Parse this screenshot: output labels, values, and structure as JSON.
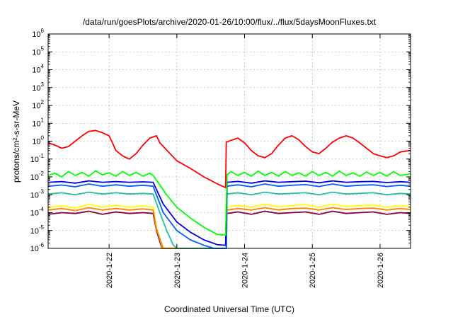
{
  "chart_data": {
    "type": "line",
    "title": "/data/run/goesPlots/archive/2020-01-26/10:00/flux/../flux/5daysMoonFluxes.txt",
    "xlabel": "Coordinated Universal Time (UTC)",
    "ylabel": "protons/cm²-s-sr-MeV",
    "yscale": "log",
    "ylim": [
      1e-06,
      1000000.0
    ],
    "xlim_days": [
      21.1,
      26.45
    ],
    "x_ticks": [
      {
        "value": 22,
        "label": "2020-1-22"
      },
      {
        "value": 23,
        "label": "2020-1-23"
      },
      {
        "value": 24,
        "label": "2020-1-24"
      },
      {
        "value": 25,
        "label": "2020-1-25"
      },
      {
        "value": 26,
        "label": "2020-1-26"
      }
    ],
    "y_ticks": [
      {
        "exp": -6
      },
      {
        "exp": -5
      },
      {
        "exp": -4
      },
      {
        "exp": -3
      },
      {
        "exp": -2
      },
      {
        "exp": -1
      },
      {
        "exp": 0
      },
      {
        "exp": 1
      },
      {
        "exp": 2
      },
      {
        "exp": 3
      },
      {
        "exp": 4
      },
      {
        "exp": 5
      },
      {
        "exp": 6
      }
    ],
    "grid": true,
    "series": [
      {
        "color": "#800040",
        "points": [
          [
            21.1,
            8e-05
          ],
          [
            21.3,
            0.0001
          ],
          [
            21.5,
            9e-05
          ],
          [
            21.7,
            0.00012
          ],
          [
            21.9,
            8e-05
          ],
          [
            22.1,
            0.00011
          ],
          [
            22.3,
            9e-05
          ],
          [
            22.5,
            0.0001
          ],
          [
            22.65,
            9e-05
          ],
          [
            22.7,
            1e-05
          ],
          [
            22.78,
            1e-06
          ],
          [
            23.73,
            1e-06
          ],
          [
            23.74,
            9e-05
          ],
          [
            23.9,
            0.00011
          ],
          [
            24.1,
            8e-05
          ],
          [
            24.3,
            0.00012
          ],
          [
            24.5,
            9e-05
          ],
          [
            24.7,
            0.0001
          ],
          [
            24.9,
            0.00011
          ],
          [
            25.1,
            8e-05
          ],
          [
            25.3,
            0.00012
          ],
          [
            25.5,
            9e-05
          ],
          [
            25.7,
            0.0001
          ],
          [
            25.9,
            0.00011
          ],
          [
            26.1,
            8e-05
          ],
          [
            26.3,
            0.0001
          ],
          [
            26.45,
            9e-05
          ]
        ]
      },
      {
        "color": "#ffff00",
        "points": [
          [
            21.1,
            0.0002
          ],
          [
            21.3,
            0.00025
          ],
          [
            21.5,
            0.00018
          ],
          [
            21.7,
            0.0003
          ],
          [
            21.9,
            0.0002
          ],
          [
            22.1,
            0.00026
          ],
          [
            22.3,
            0.0002
          ],
          [
            22.5,
            0.00024
          ],
          [
            22.65,
            0.00021
          ],
          [
            22.7,
            1.5e-05
          ],
          [
            22.79,
            1e-06
          ],
          [
            23.73,
            1e-06
          ],
          [
            23.74,
            0.0002
          ],
          [
            23.9,
            0.00026
          ],
          [
            24.1,
            0.0002
          ],
          [
            24.3,
            0.0003
          ],
          [
            24.5,
            0.00021
          ],
          [
            24.7,
            0.00025
          ],
          [
            24.9,
            0.00028
          ],
          [
            25.1,
            0.0002
          ],
          [
            25.3,
            0.0003
          ],
          [
            25.5,
            0.00022
          ],
          [
            25.7,
            0.00025
          ],
          [
            25.9,
            0.00027
          ],
          [
            26.1,
            0.0002
          ],
          [
            26.3,
            0.00025
          ],
          [
            26.45,
            0.00022
          ]
        ]
      },
      {
        "color": "#ff8000",
        "points": [
          [
            21.1,
            0.00014
          ],
          [
            21.3,
            0.00017
          ],
          [
            21.5,
            0.00013
          ],
          [
            21.7,
            0.00019
          ],
          [
            21.9,
            0.00014
          ],
          [
            22.1,
            0.00017
          ],
          [
            22.3,
            0.00014
          ],
          [
            22.5,
            0.00016
          ],
          [
            22.65,
            0.00014
          ],
          [
            22.7,
            1.2e-05
          ],
          [
            22.8,
            1e-06
          ],
          [
            23.73,
            1e-06
          ],
          [
            23.74,
            0.00014
          ],
          [
            23.9,
            0.00017
          ],
          [
            24.1,
            0.00014
          ],
          [
            24.3,
            0.00019
          ],
          [
            24.5,
            0.00014
          ],
          [
            24.7,
            0.00017
          ],
          [
            24.9,
            0.00018
          ],
          [
            25.1,
            0.00014
          ],
          [
            25.3,
            0.00019
          ],
          [
            25.5,
            0.00015
          ],
          [
            25.7,
            0.00017
          ],
          [
            25.9,
            0.00018
          ],
          [
            26.1,
            0.00014
          ],
          [
            26.3,
            0.00017
          ],
          [
            26.45,
            0.00015
          ]
        ]
      },
      {
        "color": "#20c0a0",
        "points": [
          [
            21.1,
            0.0011
          ],
          [
            21.3,
            0.0013
          ],
          [
            21.5,
            0.001
          ],
          [
            21.7,
            0.0014
          ],
          [
            21.9,
            0.0011
          ],
          [
            22.1,
            0.0013
          ],
          [
            22.3,
            0.0011
          ],
          [
            22.5,
            0.0012
          ],
          [
            22.65,
            0.0011
          ],
          [
            22.75,
            0.0001
          ],
          [
            22.85,
            1e-05
          ],
          [
            22.95,
            1.5e-06
          ],
          [
            23.0,
            1e-06
          ],
          [
            23.73,
            1e-06
          ],
          [
            23.74,
            0.0011
          ],
          [
            23.9,
            0.0013
          ],
          [
            24.1,
            0.001
          ],
          [
            24.3,
            0.0014
          ],
          [
            24.5,
            0.0011
          ],
          [
            24.7,
            0.0012
          ],
          [
            24.9,
            0.0013
          ],
          [
            25.1,
            0.001
          ],
          [
            25.3,
            0.0014
          ],
          [
            25.5,
            0.0011
          ],
          [
            25.7,
            0.0012
          ],
          [
            25.9,
            0.0013
          ],
          [
            26.1,
            0.001
          ],
          [
            26.3,
            0.0012
          ],
          [
            26.45,
            0.0011
          ]
        ]
      },
      {
        "color": "#0060ff",
        "points": [
          [
            21.1,
            0.003
          ],
          [
            21.3,
            0.0035
          ],
          [
            21.5,
            0.0028
          ],
          [
            21.7,
            0.004
          ],
          [
            21.9,
            0.003
          ],
          [
            22.1,
            0.0036
          ],
          [
            22.3,
            0.003
          ],
          [
            22.5,
            0.0034
          ],
          [
            22.65,
            0.003
          ],
          [
            22.8,
            0.0001
          ],
          [
            23.0,
            1e-05
          ],
          [
            23.2,
            3e-06
          ],
          [
            23.4,
            1.5e-06
          ],
          [
            23.55,
            1e-06
          ],
          [
            23.73,
            1e-06
          ],
          [
            23.74,
            0.003
          ],
          [
            23.9,
            0.0036
          ],
          [
            24.1,
            0.0028
          ],
          [
            24.3,
            0.004
          ],
          [
            24.5,
            0.003
          ],
          [
            24.7,
            0.0034
          ],
          [
            24.9,
            0.0037
          ],
          [
            25.1,
            0.0029
          ],
          [
            25.3,
            0.004
          ],
          [
            25.5,
            0.003
          ],
          [
            25.7,
            0.0034
          ],
          [
            25.9,
            0.0036
          ],
          [
            26.1,
            0.0029
          ],
          [
            26.3,
            0.0034
          ],
          [
            26.45,
            0.003
          ]
        ]
      },
      {
        "color": "#0000e0",
        "points": [
          [
            21.1,
            0.005
          ],
          [
            21.3,
            0.0055
          ],
          [
            21.5,
            0.0045
          ],
          [
            21.7,
            0.006
          ],
          [
            21.9,
            0.005
          ],
          [
            22.1,
            0.0055
          ],
          [
            22.3,
            0.005
          ],
          [
            22.5,
            0.0053
          ],
          [
            22.65,
            0.005
          ],
          [
            22.8,
            0.0003
          ],
          [
            23.0,
            3e-05
          ],
          [
            23.2,
            8e-06
          ],
          [
            23.4,
            3e-06
          ],
          [
            23.6,
            1.6e-06
          ],
          [
            23.72,
            1.5e-06
          ],
          [
            23.74,
            0.005
          ],
          [
            23.9,
            0.0056
          ],
          [
            24.1,
            0.0045
          ],
          [
            24.3,
            0.006
          ],
          [
            24.5,
            0.005
          ],
          [
            24.7,
            0.0054
          ],
          [
            24.9,
            0.0058
          ],
          [
            25.1,
            0.0047
          ],
          [
            25.3,
            0.006
          ],
          [
            25.5,
            0.005
          ],
          [
            25.7,
            0.0054
          ],
          [
            25.9,
            0.0056
          ],
          [
            26.1,
            0.0048
          ],
          [
            26.3,
            0.0054
          ],
          [
            26.45,
            0.005
          ]
        ]
      },
      {
        "color": "#00ff00",
        "points": [
          [
            21.1,
            0.012
          ],
          [
            21.2,
            0.016
          ],
          [
            21.3,
            0.01
          ],
          [
            21.4,
            0.02
          ],
          [
            21.5,
            0.012
          ],
          [
            21.6,
            0.018
          ],
          [
            21.7,
            0.011
          ],
          [
            21.8,
            0.022
          ],
          [
            21.9,
            0.013
          ],
          [
            22.0,
            0.017
          ],
          [
            22.1,
            0.011
          ],
          [
            22.2,
            0.02
          ],
          [
            22.3,
            0.012
          ],
          [
            22.4,
            0.018
          ],
          [
            22.5,
            0.011
          ],
          [
            22.6,
            0.016
          ],
          [
            22.65,
            0.012
          ],
          [
            22.85,
            0.001
          ],
          [
            23.0,
            0.0002
          ],
          [
            23.2,
            5e-05
          ],
          [
            23.4,
            1.5e-05
          ],
          [
            23.6,
            6e-06
          ],
          [
            23.72,
            5.5e-06
          ],
          [
            23.74,
            0.013
          ],
          [
            23.8,
            0.02
          ],
          [
            23.9,
            0.012
          ],
          [
            24.0,
            0.018
          ],
          [
            24.1,
            0.011
          ],
          [
            24.2,
            0.021
          ],
          [
            24.3,
            0.012
          ],
          [
            24.4,
            0.018
          ],
          [
            24.5,
            0.011
          ],
          [
            24.6,
            0.02
          ],
          [
            24.7,
            0.012
          ],
          [
            24.8,
            0.017
          ],
          [
            24.9,
            0.011
          ],
          [
            25.0,
            0.02
          ],
          [
            25.1,
            0.012
          ],
          [
            25.2,
            0.018
          ],
          [
            25.3,
            0.011
          ],
          [
            25.4,
            0.021
          ],
          [
            25.5,
            0.012
          ],
          [
            25.6,
            0.017
          ],
          [
            25.7,
            0.011
          ],
          [
            25.8,
            0.019
          ],
          [
            25.9,
            0.012
          ],
          [
            26.0,
            0.018
          ],
          [
            26.1,
            0.011
          ],
          [
            26.2,
            0.02
          ],
          [
            26.3,
            0.012
          ],
          [
            26.45,
            0.015
          ]
        ]
      },
      {
        "color": "#ff0000",
        "points": [
          [
            21.1,
            0.8
          ],
          [
            21.2,
            0.6
          ],
          [
            21.3,
            0.4
          ],
          [
            21.4,
            0.5
          ],
          [
            21.5,
            1.0
          ],
          [
            21.6,
            2.0
          ],
          [
            21.7,
            3.5
          ],
          [
            21.8,
            4.0
          ],
          [
            21.9,
            3.0
          ],
          [
            22.0,
            2.0
          ],
          [
            22.05,
            0.8
          ],
          [
            22.1,
            0.3
          ],
          [
            22.2,
            0.15
          ],
          [
            22.3,
            0.1
          ],
          [
            22.4,
            0.2
          ],
          [
            22.5,
            0.6
          ],
          [
            22.6,
            1.5
          ],
          [
            22.7,
            2.0
          ],
          [
            22.75,
            0.8
          ],
          [
            22.9,
            0.2
          ],
          [
            23.0,
            0.08
          ],
          [
            23.2,
            0.03
          ],
          [
            23.4,
            0.01
          ],
          [
            23.6,
            0.004
          ],
          [
            23.72,
            0.0025
          ],
          [
            23.73,
            0.9
          ],
          [
            23.9,
            1.5
          ],
          [
            24.0,
            0.8
          ],
          [
            24.1,
            0.3
          ],
          [
            24.2,
            0.15
          ],
          [
            24.3,
            0.12
          ],
          [
            24.4,
            0.2
          ],
          [
            24.5,
            0.6
          ],
          [
            24.6,
            1.5
          ],
          [
            24.7,
            2.0
          ],
          [
            24.8,
            1.2
          ],
          [
            24.9,
            0.5
          ],
          [
            25.0,
            0.25
          ],
          [
            25.1,
            0.2
          ],
          [
            25.2,
            0.4
          ],
          [
            25.3,
            0.9
          ],
          [
            25.4,
            1.5
          ],
          [
            25.5,
            2.0
          ],
          [
            25.6,
            1.5
          ],
          [
            25.7,
            0.8
          ],
          [
            25.8,
            0.4
          ],
          [
            25.9,
            0.2
          ],
          [
            26.0,
            0.15
          ],
          [
            26.1,
            0.12
          ],
          [
            26.2,
            0.15
          ],
          [
            26.3,
            0.25
          ],
          [
            26.45,
            0.3
          ]
        ]
      }
    ]
  }
}
